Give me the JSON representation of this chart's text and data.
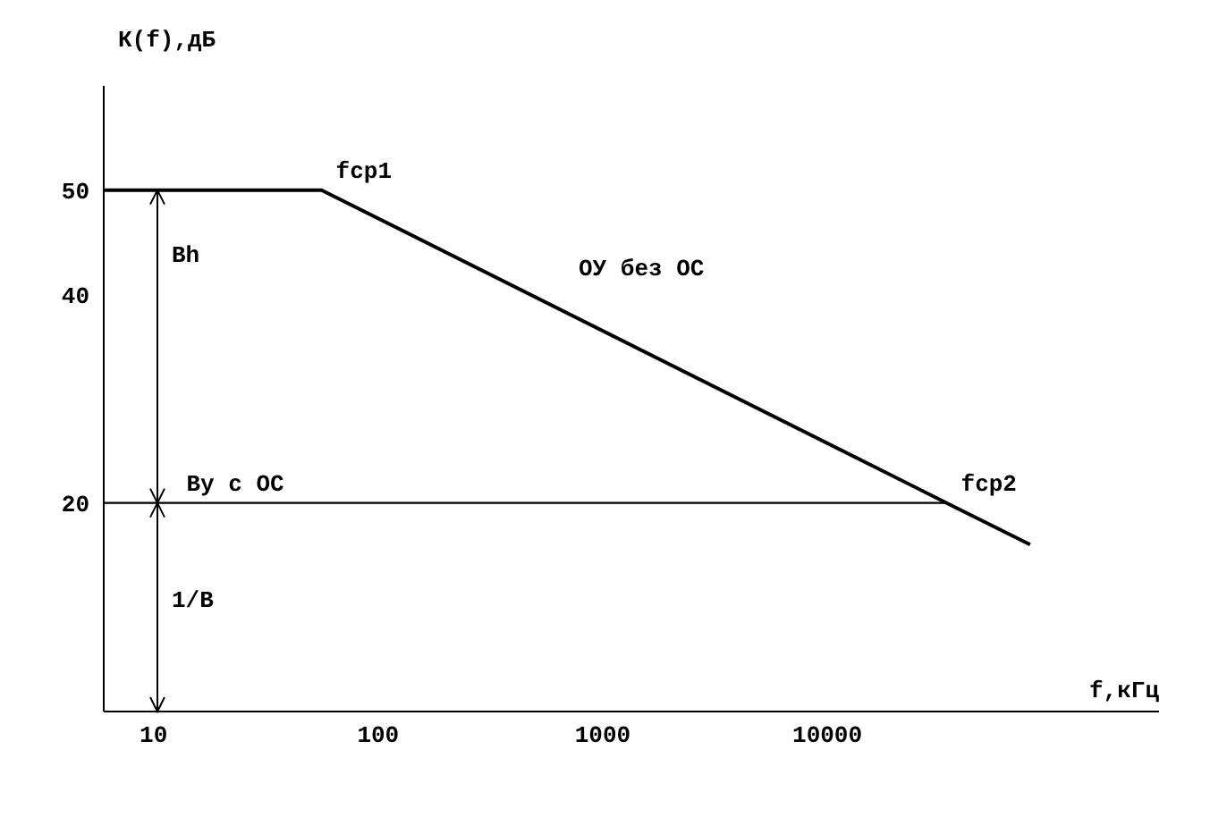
{
  "chart_data": {
    "type": "line",
    "xlabel": "f,кГц",
    "ylabel": "К(f),дБ",
    "log": "x",
    "xlim": [
      6,
      300000
    ],
    "xticks": [
      10,
      100,
      1000,
      10000
    ],
    "ylim": [
      0,
      60
    ],
    "yticks": [
      20,
      40,
      50
    ],
    "grid": false,
    "legend": false,
    "marker": "none",
    "line_style": "solid",
    "series": [
      {
        "x": [
          6,
          56,
          34000,
          80000
        ],
        "values": [
          50,
          50,
          20,
          16
        ],
        "color": "#000000"
      },
      {
        "x": [
          6,
          34000
        ],
        "values": [
          20,
          20
        ],
        "color": "#000000"
      }
    ],
    "annotations": [
      {
        "text": "fср1",
        "x": 56,
        "y": 50
      },
      {
        "text": "fср2",
        "x": 34000,
        "y": 20
      },
      "ОУ без ОС",
      "Bh",
      {
        "text": "Ву с ОС",
        "x": 14,
        "y": 20
      },
      "1/В"
    ]
  }
}
